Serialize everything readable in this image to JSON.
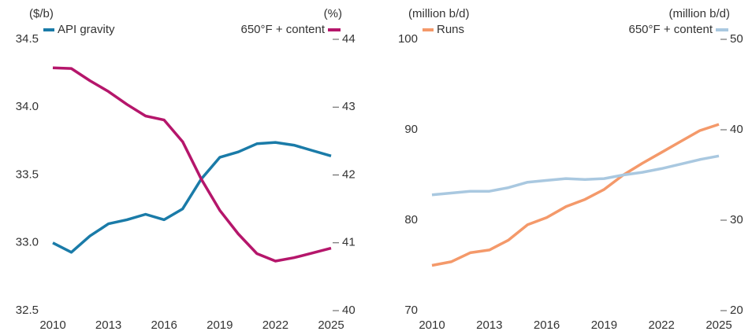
{
  "chart_data": [
    {
      "type": "line",
      "ylabel": "($/b)",
      "y2label": "(%)",
      "x": [
        2010,
        2011,
        2012,
        2013,
        2014,
        2015,
        2016,
        2017,
        2018,
        2019,
        2020,
        2021,
        2022,
        2023,
        2024,
        2025
      ],
      "xlim": [
        2010,
        2025
      ],
      "xticks": [
        2010,
        2013,
        2016,
        2019,
        2022,
        2025
      ],
      "ylim": [
        32.5,
        34.5
      ],
      "yticks": [
        32.5,
        {
          "value": 33,
          "label": "33.0"
        },
        33.5,
        {
          "value": 34,
          "label": "34.0"
        },
        34.5
      ],
      "y2lim": [
        40,
        44
      ],
      "y2ticks": [
        40,
        41,
        42,
        43,
        44
      ],
      "series": [
        {
          "name": "API gravity",
          "color": "#1a7ba8",
          "values": [
            33.0,
            32.93,
            33.05,
            33.14,
            33.17,
            33.21,
            33.17,
            33.25,
            33.47,
            33.63,
            33.67,
            33.73,
            33.74,
            33.72,
            33.68,
            33.64
          ]
        },
        {
          "name": "650°F + content",
          "color": "#b5166b",
          "axis": "y2",
          "values": [
            43.58,
            43.57,
            43.39,
            43.23,
            43.04,
            42.87,
            42.81,
            42.49,
            41.94,
            41.48,
            41.13,
            40.84,
            40.73,
            40.78,
            40.85,
            40.92
          ]
        }
      ]
    },
    {
      "type": "line",
      "ylabel": "(million b/d)",
      "y2label": "(million b/d)",
      "x": [
        2010,
        2011,
        2012,
        2013,
        2014,
        2015,
        2016,
        2017,
        2018,
        2019,
        2020,
        2021,
        2022,
        2023,
        2024,
        2025
      ],
      "xlim": [
        2010,
        2025
      ],
      "xticks": [
        2010,
        2013,
        2016,
        2019,
        2022,
        2025
      ],
      "ylim": [
        70,
        100
      ],
      "yticks": [
        70,
        80,
        90,
        100
      ],
      "y2lim": [
        20,
        50
      ],
      "y2ticks": [
        20,
        30,
        40,
        50
      ],
      "series": [
        {
          "name": "Runs",
          "color": "#f4996a",
          "values": [
            75.0,
            75.4,
            76.4,
            76.7,
            77.8,
            79.5,
            80.3,
            81.5,
            82.3,
            83.4,
            85.0,
            86.3,
            87.5,
            88.7,
            89.9,
            90.6
          ]
        },
        {
          "name": "650°F + content",
          "color": "#a9c8e0",
          "axis": "y2",
          "values": [
            32.8,
            33.0,
            33.2,
            33.2,
            33.6,
            34.2,
            34.4,
            34.6,
            34.5,
            34.6,
            35.0,
            35.3,
            35.7,
            36.2,
            36.7,
            37.1
          ]
        }
      ]
    }
  ]
}
